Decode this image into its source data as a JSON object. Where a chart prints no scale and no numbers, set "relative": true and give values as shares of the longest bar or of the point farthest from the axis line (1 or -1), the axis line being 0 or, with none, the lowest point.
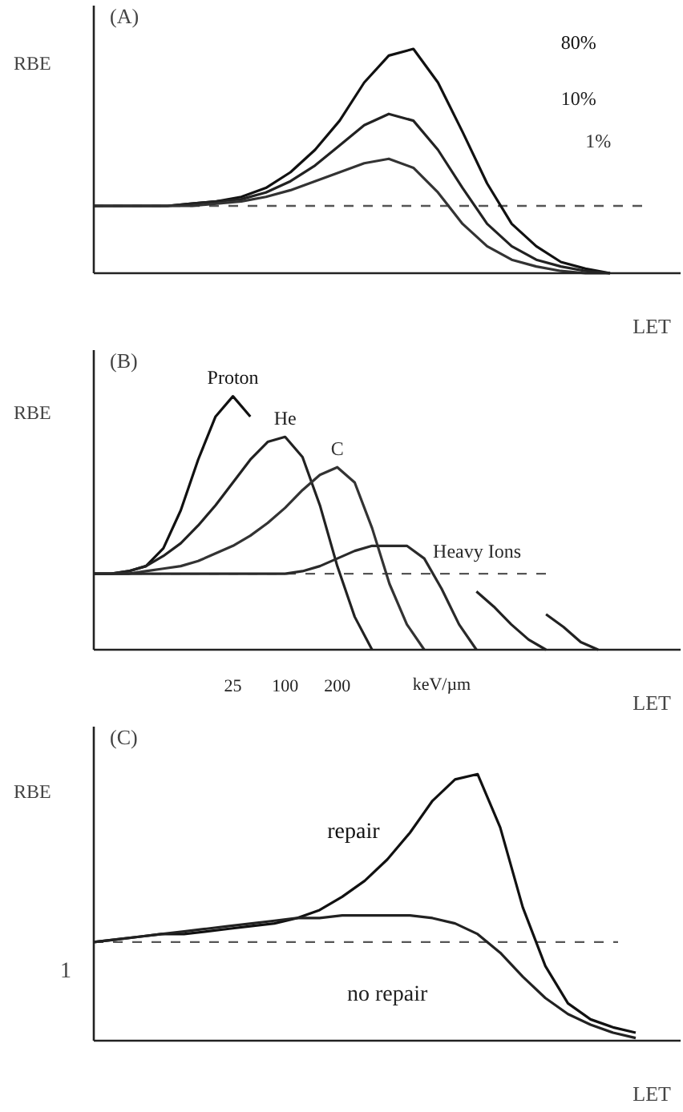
{
  "chart_data": [
    {
      "type": "line",
      "title": "(A)",
      "ylabel": "RBE",
      "xlabel": "LET",
      "relative": true,
      "categories": [
        null,
        null,
        null,
        null,
        null,
        null,
        null,
        null,
        null,
        null,
        null,
        null,
        null,
        null,
        null,
        null,
        null,
        null,
        null,
        null,
        null,
        null
      ],
      "series": [
        {
          "name": "80%",
          "color": "#111111",
          "values": [
            0.3,
            0.3,
            0.3,
            0.3,
            0.31,
            0.32,
            0.34,
            0.38,
            0.45,
            0.55,
            0.68,
            0.85,
            0.97,
            1.0,
            0.85,
            0.63,
            0.4,
            0.22,
            0.12,
            0.05,
            0.02,
            0.0
          ]
        },
        {
          "name": "10%",
          "color": "#222222",
          "values": [
            0.3,
            0.3,
            0.3,
            0.3,
            0.31,
            0.32,
            0.33,
            0.36,
            0.41,
            0.48,
            0.57,
            0.66,
            0.71,
            0.68,
            0.55,
            0.38,
            0.22,
            0.12,
            0.06,
            0.03,
            0.01,
            0.0
          ]
        },
        {
          "name": "1%",
          "color": "#333333",
          "values": [
            0.3,
            0.3,
            0.3,
            0.3,
            0.3,
            0.31,
            0.32,
            0.34,
            0.37,
            0.41,
            0.45,
            0.49,
            0.51,
            0.47,
            0.36,
            0.22,
            0.12,
            0.06,
            0.03,
            0.01,
            0.0,
            0.0
          ]
        }
      ],
      "ref_lines": [
        {
          "axis": "y",
          "value": 0.3,
          "color": "#555555",
          "line_style": "dashed"
        }
      ]
    },
    {
      "type": "line",
      "title": "(B)",
      "ylabel": "RBE",
      "xlabel": "LET",
      "relative": true,
      "categories": [
        null,
        null,
        null,
        null,
        null,
        null,
        null,
        null,
        "25",
        null,
        null,
        "100",
        null,
        null,
        "200",
        null,
        null,
        null,
        null,
        null,
        "keV/µm",
        null,
        null,
        null,
        null,
        null,
        null,
        null,
        null,
        null,
        null,
        null,
        null,
        null
      ],
      "series": [
        {
          "name": "Proton",
          "color": "#111111",
          "values": [
            0.3,
            0.3,
            0.31,
            0.33,
            0.4,
            0.55,
            0.75,
            0.92,
            1.0,
            0.92,
            null,
            null,
            null,
            null,
            null,
            null,
            null,
            null,
            null,
            null,
            null,
            null,
            null,
            null,
            null,
            null,
            null,
            null,
            null,
            null,
            null,
            null,
            null,
            null
          ]
        },
        {
          "name": "He",
          "color": "#222222",
          "values": [
            0.3,
            0.3,
            0.31,
            0.33,
            0.37,
            0.42,
            0.49,
            0.57,
            0.66,
            0.75,
            0.82,
            0.84,
            0.76,
            0.57,
            0.33,
            0.13,
            0.0,
            null,
            null,
            null,
            null,
            null,
            null,
            null,
            null,
            null,
            null,
            null,
            null,
            null,
            null,
            null,
            null,
            null
          ]
        },
        {
          "name": "C",
          "color": "#333333",
          "values": [
            0.3,
            0.3,
            0.3,
            0.31,
            0.32,
            0.33,
            0.35,
            0.38,
            0.41,
            0.45,
            0.5,
            0.56,
            0.63,
            0.69,
            0.72,
            0.66,
            0.48,
            0.26,
            0.1,
            0.0,
            null,
            null,
            null,
            null,
            null,
            null,
            null,
            null,
            null,
            null,
            null,
            null,
            null,
            null
          ]
        },
        {
          "name": "Heavy Ions",
          "color": "#2a2a2a",
          "values": [
            0.3,
            0.3,
            0.3,
            0.3,
            0.3,
            0.3,
            0.3,
            0.3,
            0.3,
            0.3,
            0.3,
            0.3,
            0.31,
            0.33,
            0.36,
            0.39,
            0.41,
            0.41,
            0.41,
            0.36,
            0.24,
            0.1,
            0.0,
            null,
            null,
            null,
            null,
            null,
            null,
            null,
            null,
            null,
            null,
            null
          ]
        },
        {
          "color": "#222222",
          "values": [
            null,
            null,
            null,
            null,
            null,
            null,
            null,
            null,
            null,
            null,
            null,
            null,
            null,
            null,
            null,
            null,
            null,
            null,
            null,
            null,
            null,
            null,
            0.23,
            0.17,
            0.1,
            0.04,
            0.0,
            null,
            null,
            null,
            null,
            null,
            null,
            null
          ]
        },
        {
          "color": "#222222",
          "values": [
            null,
            null,
            null,
            null,
            null,
            null,
            null,
            null,
            null,
            null,
            null,
            null,
            null,
            null,
            null,
            null,
            null,
            null,
            null,
            null,
            null,
            null,
            null,
            null,
            null,
            null,
            0.14,
            0.09,
            0.03,
            0.0,
            null,
            null,
            null,
            null
          ]
        }
      ],
      "ref_lines": [
        {
          "axis": "y",
          "value": 0.3,
          "color": "#555555",
          "line_style": "dashed"
        }
      ]
    },
    {
      "type": "line",
      "title": "(C)",
      "ylabel": "RBE",
      "xlabel": "LET",
      "relative": true,
      "categories": [
        null,
        null,
        null,
        null,
        null,
        null,
        null,
        null,
        null,
        null,
        null,
        null,
        null,
        null,
        null,
        null,
        null,
        null,
        null,
        null,
        null,
        null,
        null,
        null,
        null
      ],
      "series": [
        {
          "name": "repair",
          "color": "#111111",
          "values": [
            0.37,
            0.38,
            0.39,
            0.4,
            0.4,
            0.41,
            0.42,
            0.43,
            0.44,
            0.46,
            0.49,
            0.54,
            0.6,
            0.68,
            0.78,
            0.9,
            0.98,
            1.0,
            0.8,
            0.5,
            0.28,
            0.14,
            0.08,
            0.05,
            0.03
          ]
        },
        {
          "name": "no repair",
          "color": "#222222",
          "values": [
            0.37,
            0.38,
            0.39,
            0.4,
            0.41,
            0.42,
            0.43,
            0.44,
            0.45,
            0.46,
            0.46,
            0.47,
            0.47,
            0.47,
            0.47,
            0.46,
            0.44,
            0.4,
            0.33,
            0.24,
            0.16,
            0.1,
            0.06,
            0.03,
            0.01
          ]
        }
      ],
      "ref_lines": [
        {
          "axis": "y",
          "value": 0.37,
          "color": "#555555",
          "line_style": "dashed"
        }
      ],
      "annotations": [
        "1"
      ]
    }
  ]
}
